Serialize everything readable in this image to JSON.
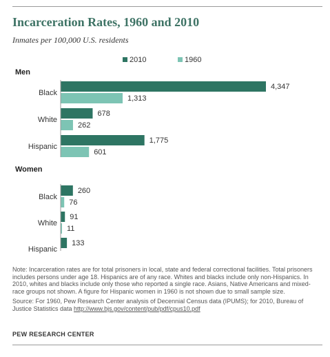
{
  "title": "Incarceration Rates, 1960 and 2010",
  "subtitle": "Inmates per 100,000 U.S. residents",
  "colors": {
    "s2010": "#2e7563",
    "s1960": "#7dc4b4",
    "title": "#3e7365"
  },
  "chart_data": {
    "type": "bar",
    "orientation": "horizontal",
    "title": "Incarceration Rates, 1960 and 2010",
    "subtitle": "Inmates per 100,000 U.S. residents",
    "legend_position": "top",
    "grid": false,
    "xlim": [
      0,
      4347
    ],
    "series_names": [
      "2010",
      "1960"
    ],
    "groups": [
      {
        "name": "Men",
        "categories": [
          {
            "label": "Black",
            "values": [
              4347,
              1313
            ],
            "value_labels": [
              "4,347",
              "1,313"
            ]
          },
          {
            "label": "White",
            "values": [
              678,
              262
            ],
            "value_labels": [
              "678",
              "262"
            ]
          },
          {
            "label": "Hispanic",
            "values": [
              1775,
              601
            ],
            "value_labels": [
              "1,775",
              "601"
            ]
          }
        ]
      },
      {
        "name": "Women",
        "categories": [
          {
            "label": "Black",
            "values": [
              260,
              76
            ],
            "value_labels": [
              "260",
              "76"
            ]
          },
          {
            "label": "White",
            "values": [
              91,
              11
            ],
            "value_labels": [
              "91",
              "11"
            ]
          },
          {
            "label": "Hispanic",
            "values": [
              133,
              null
            ],
            "value_labels": [
              "133",
              ""
            ]
          }
        ]
      }
    ]
  },
  "notes": {
    "note": "Note: Incarceration rates are for total prisoners in local, state and federal correctional facilities. Total prisoners includes persons under age 18. Hispanics are of any race. Whites and blacks include only non-Hispanics. In 2010, whites and blacks include only those who reported a single race. Asians, Native Americans and mixed-race groups not shown. A figure for Hispanic women in 1960 is not shown due to small sample size.",
    "source_prefix": "Source: For 1960, Pew Research Center analysis of Decennial Census data (IPUMS); for 2010, Bureau of Justice Statistics data ",
    "source_link": "http://www.bjs.gov/content/pub/pdf/cpus10.pdf"
  },
  "credit": "PEW RESEARCH CENTER"
}
